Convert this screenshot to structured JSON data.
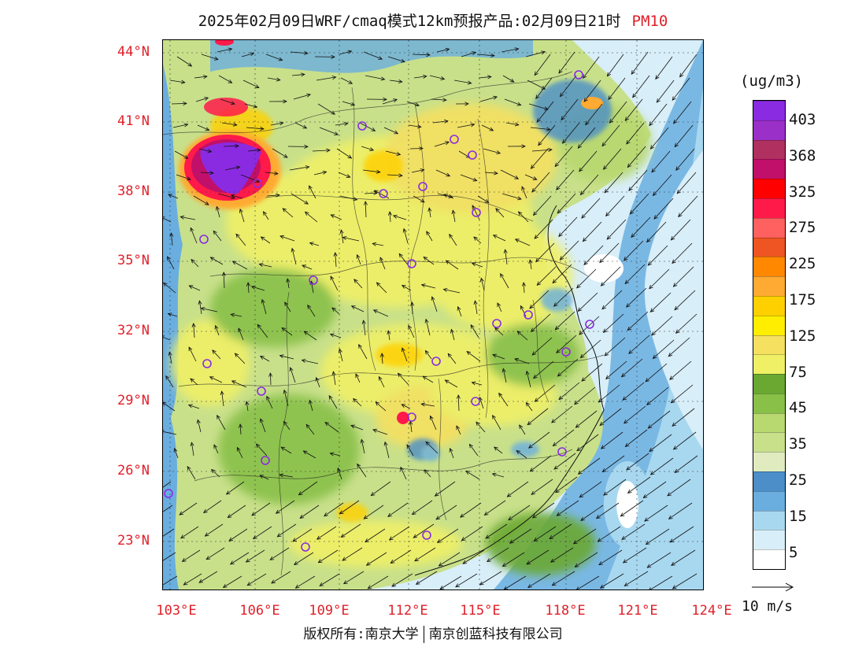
{
  "title": {
    "main": "2025年02月09日WRF/cmaq模式12km预报产品:02月09日21时",
    "product": "PM10"
  },
  "map": {
    "lat_labels": [
      "44°N",
      "41°N",
      "38°N",
      "35°N",
      "32°N",
      "29°N",
      "26°N",
      "23°N"
    ],
    "lon_labels": [
      "103°E",
      "106°E",
      "109°E",
      "112°E",
      "115°E",
      "118°E",
      "121°E",
      "124°E"
    ],
    "label_color": "#e0202a",
    "region": "Eastern China",
    "note": "PM10 concentration field with wind vectors; purple circles mark city monitoring sites"
  },
  "colorbar": {
    "unit": "(ug/m3)",
    "labels": [
      "403",
      "368",
      "325",
      "275",
      "225",
      "175",
      "125",
      "75",
      "45",
      "35",
      "25",
      "15",
      "5"
    ],
    "colors": [
      "#8a2be2",
      "#9b30c8",
      "#b03060",
      "#c0106a",
      "#ff0000",
      "#ff1a4a",
      "#ff6060",
      "#ee5522",
      "#ff8800",
      "#ffaa33",
      "#ffd000",
      "#ffee00",
      "#f5e060",
      "#f0f066",
      "#6aa832",
      "#88c048",
      "#b8d870",
      "#c8e08a",
      "#e0ecc0",
      "#4b8ec8",
      "#6aaee0",
      "#a8d8f0",
      "#d8eef8",
      "#ffffff"
    ]
  },
  "wind": {
    "reference_label": "10 m/s"
  },
  "footer": {
    "left": "版权所有:南京大学",
    "right": "南京创蓝科技有限公司"
  }
}
